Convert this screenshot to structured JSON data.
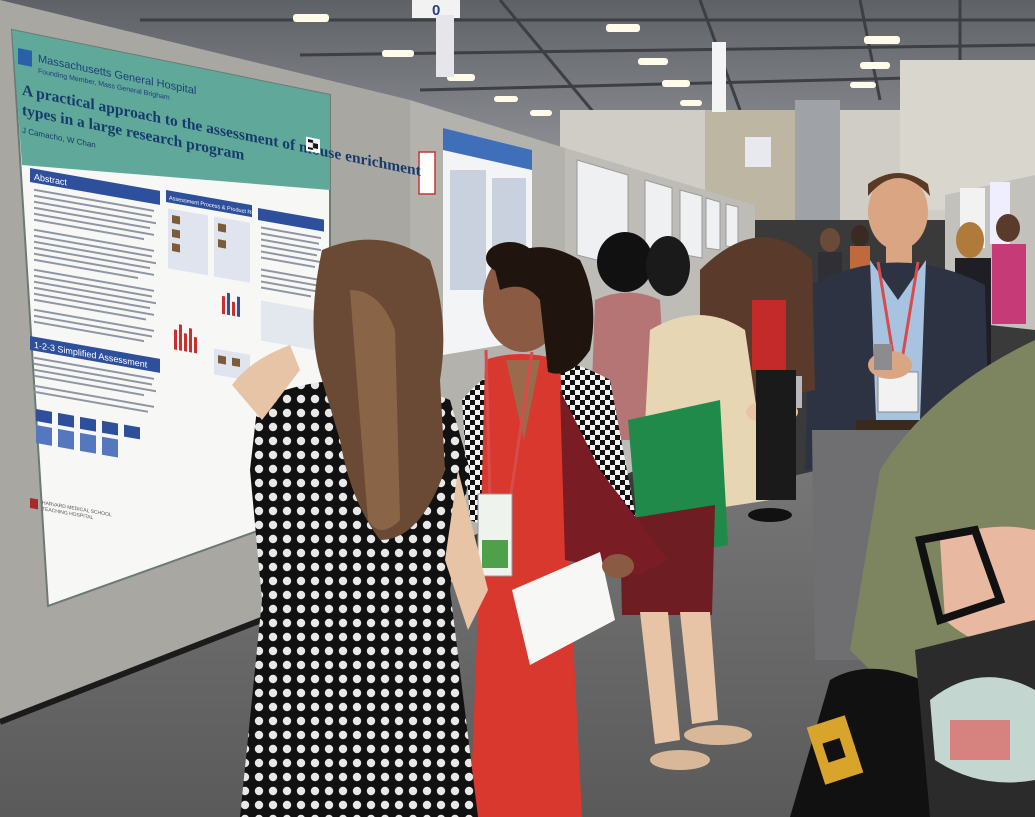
{
  "photo": {
    "description_free": true
  },
  "poster": {
    "institution": "Massachusetts General Hospital",
    "affiliation": "Founding Member, Mass General Brigham",
    "title_line1": "A practical approach to the assessment of mouse enrichment",
    "title_line2": "types in a large research program",
    "authors": "J Camacho, W Chan",
    "section_abstract": "Abstract",
    "section_assessment": "Assessment Process & Product Results",
    "section_simplified": "1-2-3 Simplified Assessment",
    "footer_school": "HARVARD MEDICAL SCHOOL",
    "footer_hospital": "TEACHING HOSPITAL"
  },
  "signage": {
    "aisle_number": "0"
  },
  "colors": {
    "poster_header": "#5fa89a",
    "section_blue": "#2e4f9c",
    "red_jumpsuit": "#d8382e",
    "floor": "#6d6d6d",
    "board_gray": "#a8a7a2"
  }
}
